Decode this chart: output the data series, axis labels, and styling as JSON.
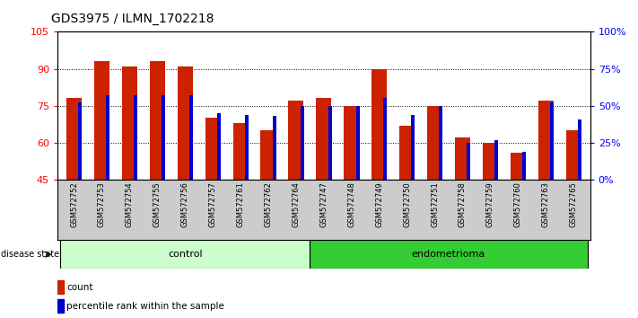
{
  "title": "GDS3975 / ILMN_1702218",
  "samples": [
    "GSM572752",
    "GSM572753",
    "GSM572754",
    "GSM572755",
    "GSM572756",
    "GSM572757",
    "GSM572761",
    "GSM572762",
    "GSM572764",
    "GSM572747",
    "GSM572748",
    "GSM572749",
    "GSM572750",
    "GSM572751",
    "GSM572758",
    "GSM572759",
    "GSM572760",
    "GSM572763",
    "GSM572765"
  ],
  "groups": [
    "control",
    "control",
    "control",
    "control",
    "control",
    "control",
    "control",
    "control",
    "control",
    "endometrioma",
    "endometrioma",
    "endometrioma",
    "endometrioma",
    "endometrioma",
    "endometrioma",
    "endometrioma",
    "endometrioma",
    "endometrioma",
    "endometrioma"
  ],
  "count_values": [
    78,
    93,
    91,
    93,
    91,
    70,
    68,
    65,
    77,
    78,
    75,
    90,
    67,
    75,
    62,
    60,
    56,
    77,
    65
  ],
  "percentile_values": [
    52,
    57,
    57,
    57,
    57,
    45,
    44,
    43,
    50,
    50,
    50,
    55,
    44,
    50,
    25,
    27,
    19,
    52,
    41
  ],
  "y_min": 45,
  "y_max": 105,
  "y_ticks": [
    45,
    60,
    75,
    90,
    105
  ],
  "y2_ticks": [
    0,
    25,
    50,
    75,
    100
  ],
  "bar_color": "#cc2200",
  "blue_color": "#0000cc",
  "control_color_light": "#ccffcc",
  "endometrioma_color": "#33cc33",
  "bg_color": "#cccccc",
  "plot_bg": "#ffffff",
  "title_fontsize": 10,
  "tick_fontsize": 8,
  "n_control": 9,
  "n_endo": 10
}
